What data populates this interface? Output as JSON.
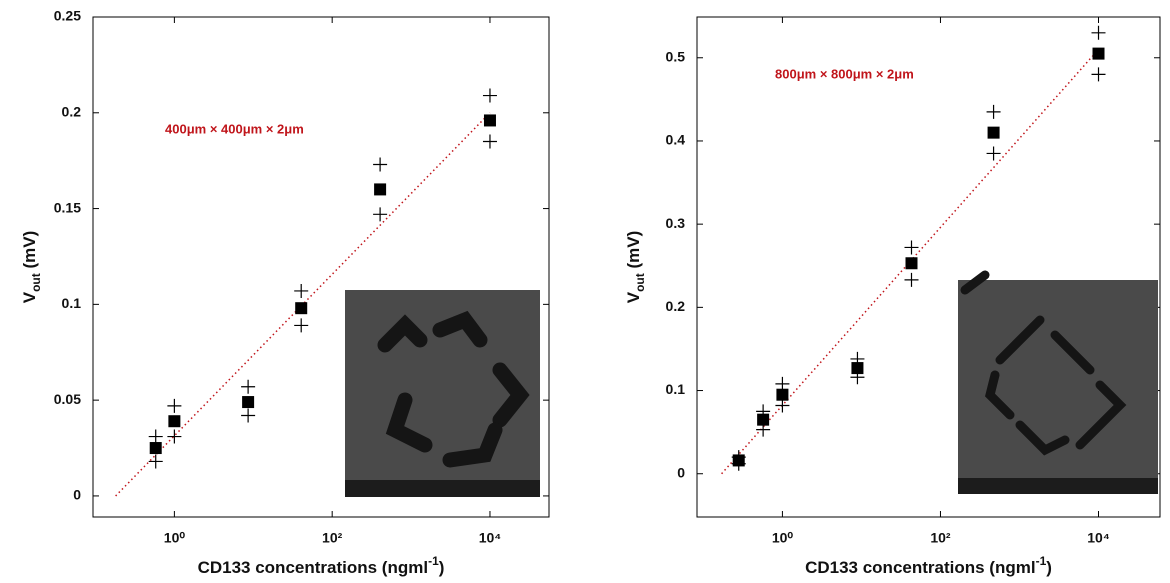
{
  "chart_data": [
    {
      "type": "scatter",
      "x": [
        0.58,
        1,
        8.6,
        40.5,
        405,
        10000
      ],
      "values": [
        0.025,
        0.039,
        0.049,
        0.098,
        0.16,
        0.196
      ],
      "upper": [
        0.031,
        0.047,
        0.057,
        0.107,
        0.173,
        0.209
      ],
      "lower": [
        0.018,
        0.031,
        0.042,
        0.089,
        0.147,
        0.185
      ],
      "fit_x": [
        0.18,
        10000
      ],
      "fit_y": [
        0,
        0.2
      ],
      "annotation": "400μm × 400μm × 2μm",
      "xlabel": [
        "CD133 concentrations (ngml",
        "-1",
        ")"
      ],
      "ylabel": [
        "V",
        "out",
        " (mV)"
      ],
      "xlim": [
        0.093,
        56000
      ],
      "ylim": [
        -0.011,
        0.25
      ],
      "xlog": true,
      "xticks": [
        {
          "value": 1,
          "label": "10⁰"
        },
        {
          "value": 100,
          "label": "10²"
        },
        {
          "value": 10000,
          "label": "10⁴"
        }
      ],
      "yticks": [
        0,
        0.05,
        0.1,
        0.15,
        0.2,
        0.25
      ],
      "color": "#000000",
      "fit_color": "#c0151b"
    },
    {
      "type": "scatter",
      "x": [
        0.28,
        0.57,
        1,
        8.9,
        43,
        470,
        10000
      ],
      "values": [
        0.016,
        0.065,
        0.095,
        0.127,
        0.253,
        0.41,
        0.505
      ],
      "upper": [
        0.02,
        0.075,
        0.108,
        0.138,
        0.272,
        0.435,
        0.53
      ],
      "lower": [
        0.012,
        0.053,
        0.082,
        0.116,
        0.233,
        0.385,
        0.48
      ],
      "fit_x": [
        0.17,
        10000
      ],
      "fit_y": [
        0,
        0.51
      ],
      "annotation": "800μm × 800μm × 2μm",
      "xlabel": [
        "CD133 concentrations (ngml",
        "-1",
        ")"
      ],
      "ylabel": [
        "V",
        "out",
        " (mV)"
      ],
      "xlim": [
        0.083,
        60000
      ],
      "ylim": [
        -0.052,
        0.549
      ],
      "xlog": true,
      "xticks": [
        {
          "value": 1,
          "label": "10⁰"
        },
        {
          "value": 100,
          "label": "10²"
        },
        {
          "value": 10000,
          "label": "10⁴"
        }
      ],
      "yticks": [
        0,
        0.1,
        0.2,
        0.3,
        0.4,
        0.5
      ],
      "color": "#000000",
      "fit_color": "#c0151b"
    }
  ]
}
